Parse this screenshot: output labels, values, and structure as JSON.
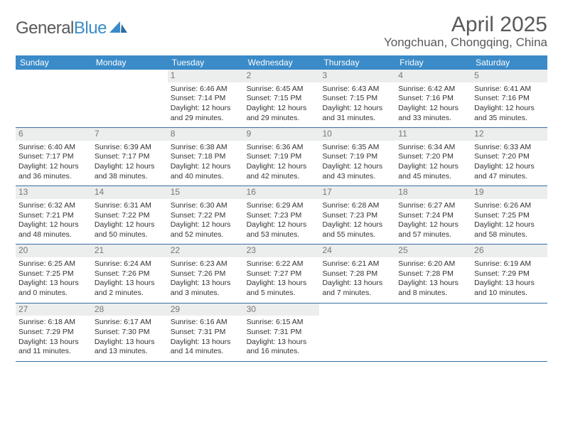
{
  "logo": {
    "word1": "General",
    "word2": "Blue"
  },
  "title": "April 2025",
  "location": "Yongchuan, Chongqing, China",
  "colors": {
    "header_bg": "#3b8bc8",
    "header_text": "#ffffff",
    "daynum_bg": "#eceded",
    "daynum_text": "#777777",
    "row_border": "#3b6fa0",
    "body_text": "#333333",
    "title_text": "#58595b"
  },
  "dayNames": [
    "Sunday",
    "Monday",
    "Tuesday",
    "Wednesday",
    "Thursday",
    "Friday",
    "Saturday"
  ],
  "weeks": [
    [
      null,
      null,
      {
        "n": "1",
        "sr": "6:46 AM",
        "ss": "7:14 PM",
        "dl1": "Daylight: 12 hours",
        "dl2": "and 29 minutes."
      },
      {
        "n": "2",
        "sr": "6:45 AM",
        "ss": "7:15 PM",
        "dl1": "Daylight: 12 hours",
        "dl2": "and 29 minutes."
      },
      {
        "n": "3",
        "sr": "6:43 AM",
        "ss": "7:15 PM",
        "dl1": "Daylight: 12 hours",
        "dl2": "and 31 minutes."
      },
      {
        "n": "4",
        "sr": "6:42 AM",
        "ss": "7:16 PM",
        "dl1": "Daylight: 12 hours",
        "dl2": "and 33 minutes."
      },
      {
        "n": "5",
        "sr": "6:41 AM",
        "ss": "7:16 PM",
        "dl1": "Daylight: 12 hours",
        "dl2": "and 35 minutes."
      }
    ],
    [
      {
        "n": "6",
        "sr": "6:40 AM",
        "ss": "7:17 PM",
        "dl1": "Daylight: 12 hours",
        "dl2": "and 36 minutes."
      },
      {
        "n": "7",
        "sr": "6:39 AM",
        "ss": "7:17 PM",
        "dl1": "Daylight: 12 hours",
        "dl2": "and 38 minutes."
      },
      {
        "n": "8",
        "sr": "6:38 AM",
        "ss": "7:18 PM",
        "dl1": "Daylight: 12 hours",
        "dl2": "and 40 minutes."
      },
      {
        "n": "9",
        "sr": "6:36 AM",
        "ss": "7:19 PM",
        "dl1": "Daylight: 12 hours",
        "dl2": "and 42 minutes."
      },
      {
        "n": "10",
        "sr": "6:35 AM",
        "ss": "7:19 PM",
        "dl1": "Daylight: 12 hours",
        "dl2": "and 43 minutes."
      },
      {
        "n": "11",
        "sr": "6:34 AM",
        "ss": "7:20 PM",
        "dl1": "Daylight: 12 hours",
        "dl2": "and 45 minutes."
      },
      {
        "n": "12",
        "sr": "6:33 AM",
        "ss": "7:20 PM",
        "dl1": "Daylight: 12 hours",
        "dl2": "and 47 minutes."
      }
    ],
    [
      {
        "n": "13",
        "sr": "6:32 AM",
        "ss": "7:21 PM",
        "dl1": "Daylight: 12 hours",
        "dl2": "and 48 minutes."
      },
      {
        "n": "14",
        "sr": "6:31 AM",
        "ss": "7:22 PM",
        "dl1": "Daylight: 12 hours",
        "dl2": "and 50 minutes."
      },
      {
        "n": "15",
        "sr": "6:30 AM",
        "ss": "7:22 PM",
        "dl1": "Daylight: 12 hours",
        "dl2": "and 52 minutes."
      },
      {
        "n": "16",
        "sr": "6:29 AM",
        "ss": "7:23 PM",
        "dl1": "Daylight: 12 hours",
        "dl2": "and 53 minutes."
      },
      {
        "n": "17",
        "sr": "6:28 AM",
        "ss": "7:23 PM",
        "dl1": "Daylight: 12 hours",
        "dl2": "and 55 minutes."
      },
      {
        "n": "18",
        "sr": "6:27 AM",
        "ss": "7:24 PM",
        "dl1": "Daylight: 12 hours",
        "dl2": "and 57 minutes."
      },
      {
        "n": "19",
        "sr": "6:26 AM",
        "ss": "7:25 PM",
        "dl1": "Daylight: 12 hours",
        "dl2": "and 58 minutes."
      }
    ],
    [
      {
        "n": "20",
        "sr": "6:25 AM",
        "ss": "7:25 PM",
        "dl1": "Daylight: 13 hours",
        "dl2": "and 0 minutes."
      },
      {
        "n": "21",
        "sr": "6:24 AM",
        "ss": "7:26 PM",
        "dl1": "Daylight: 13 hours",
        "dl2": "and 2 minutes."
      },
      {
        "n": "22",
        "sr": "6:23 AM",
        "ss": "7:26 PM",
        "dl1": "Daylight: 13 hours",
        "dl2": "and 3 minutes."
      },
      {
        "n": "23",
        "sr": "6:22 AM",
        "ss": "7:27 PM",
        "dl1": "Daylight: 13 hours",
        "dl2": "and 5 minutes."
      },
      {
        "n": "24",
        "sr": "6:21 AM",
        "ss": "7:28 PM",
        "dl1": "Daylight: 13 hours",
        "dl2": "and 7 minutes."
      },
      {
        "n": "25",
        "sr": "6:20 AM",
        "ss": "7:28 PM",
        "dl1": "Daylight: 13 hours",
        "dl2": "and 8 minutes."
      },
      {
        "n": "26",
        "sr": "6:19 AM",
        "ss": "7:29 PM",
        "dl1": "Daylight: 13 hours",
        "dl2": "and 10 minutes."
      }
    ],
    [
      {
        "n": "27",
        "sr": "6:18 AM",
        "ss": "7:29 PM",
        "dl1": "Daylight: 13 hours",
        "dl2": "and 11 minutes."
      },
      {
        "n": "28",
        "sr": "6:17 AM",
        "ss": "7:30 PM",
        "dl1": "Daylight: 13 hours",
        "dl2": "and 13 minutes."
      },
      {
        "n": "29",
        "sr": "6:16 AM",
        "ss": "7:31 PM",
        "dl1": "Daylight: 13 hours",
        "dl2": "and 14 minutes."
      },
      {
        "n": "30",
        "sr": "6:15 AM",
        "ss": "7:31 PM",
        "dl1": "Daylight: 13 hours",
        "dl2": "and 16 minutes."
      },
      null,
      null,
      null
    ]
  ],
  "labels": {
    "sunrise": "Sunrise: ",
    "sunset": "Sunset: "
  }
}
